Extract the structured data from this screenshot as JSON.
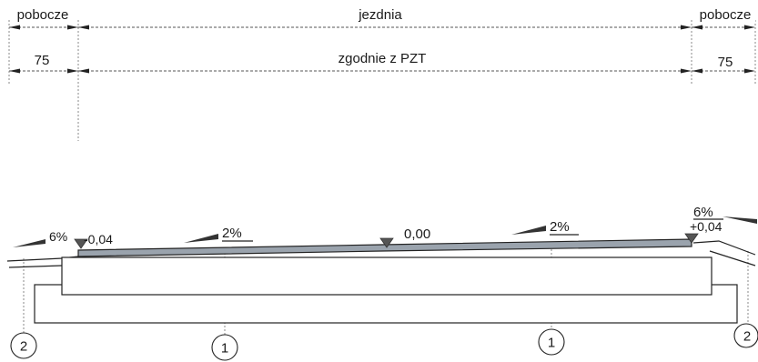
{
  "dimensions": {
    "left_shoulder_label": "pobocze",
    "carriageway_label": "jezdnia",
    "right_shoulder_label": "pobocze",
    "left_shoulder_width": "75",
    "carriageway_width": "zgodnie z PZT",
    "right_shoulder_width": "75"
  },
  "cross_section": {
    "left_shoulder_slope": "6%",
    "left_edge_level": "-0,04",
    "left_lane_slope": "2%",
    "axis_level": "0,00",
    "right_lane_slope": "2%",
    "right_shoulder_slope": "6%",
    "right_edge_level": "+0,04"
  },
  "callouts": [
    "2",
    "1",
    "1",
    "2"
  ],
  "colors": {
    "road_surface": "#9aa3ad",
    "line": "#222222"
  }
}
